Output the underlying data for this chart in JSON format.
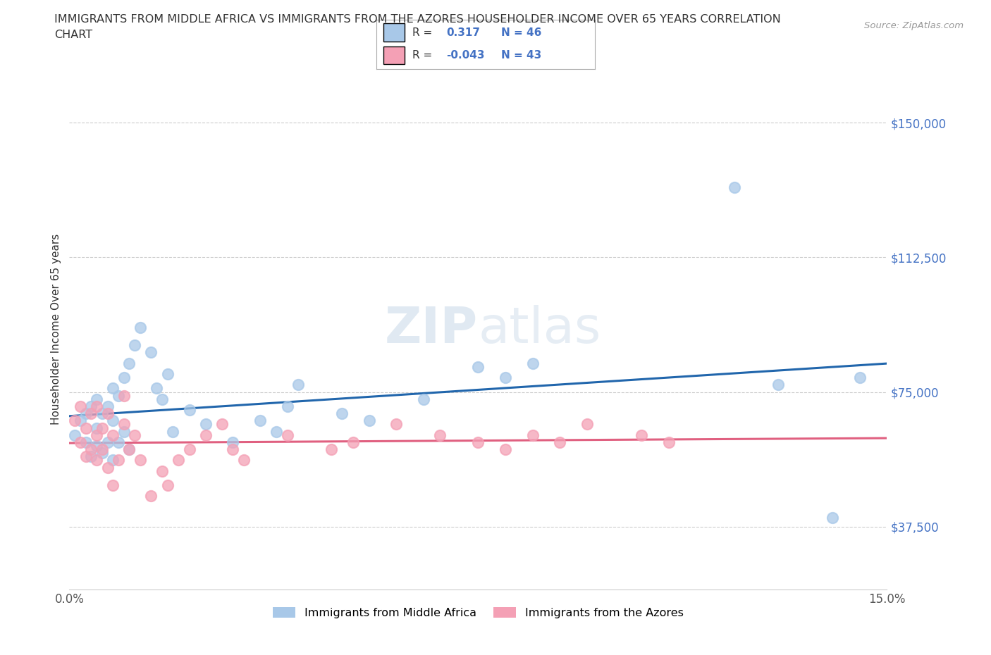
{
  "title_line1": "IMMIGRANTS FROM MIDDLE AFRICA VS IMMIGRANTS FROM THE AZORES HOUSEHOLDER INCOME OVER 65 YEARS CORRELATION",
  "title_line2": "CHART",
  "source_text": "Source: ZipAtlas.com",
  "ylabel": "Householder Income Over 65 years",
  "xlim": [
    0.0,
    0.15
  ],
  "ylim": [
    20000,
    165000
  ],
  "yticks": [
    37500,
    75000,
    112500,
    150000
  ],
  "ytick_labels": [
    "$37,500",
    "$75,000",
    "$112,500",
    "$150,000"
  ],
  "xtick_positions": [
    0.0,
    0.03,
    0.06,
    0.09,
    0.12,
    0.15
  ],
  "xtick_labels": [
    "0.0%",
    "",
    "",
    "",
    "",
    "15.0%"
  ],
  "blue_R": "0.317",
  "blue_N": "46",
  "pink_R": "-0.043",
  "pink_N": "43",
  "blue_dot_color": "#a8c8e8",
  "pink_dot_color": "#f4a0b5",
  "blue_line_color": "#2166ac",
  "pink_line_color": "#e06080",
  "grid_color": "#cccccc",
  "bg_color": "#ffffff",
  "title_color": "#333333",
  "ytick_color": "#4472c4",
  "xtick_color": "#555555",
  "legend_label_color": "#333333",
  "legend_value_color": "#4472c4",
  "watermark_color": "#c8d8e8",
  "blue_scatter_x": [
    0.001,
    0.002,
    0.003,
    0.003,
    0.004,
    0.004,
    0.005,
    0.005,
    0.005,
    0.006,
    0.006,
    0.007,
    0.007,
    0.008,
    0.008,
    0.008,
    0.009,
    0.009,
    0.01,
    0.01,
    0.011,
    0.011,
    0.012,
    0.013,
    0.015,
    0.016,
    0.017,
    0.018,
    0.019,
    0.022,
    0.025,
    0.03,
    0.035,
    0.038,
    0.04,
    0.042,
    0.05,
    0.055,
    0.065,
    0.075,
    0.08,
    0.085,
    0.122,
    0.13,
    0.14,
    0.145
  ],
  "blue_scatter_y": [
    63000,
    67000,
    61000,
    69000,
    57000,
    71000,
    60000,
    65000,
    73000,
    58000,
    69000,
    61000,
    71000,
    56000,
    67000,
    76000,
    61000,
    74000,
    64000,
    79000,
    59000,
    83000,
    88000,
    93000,
    86000,
    76000,
    73000,
    80000,
    64000,
    70000,
    66000,
    61000,
    67000,
    64000,
    71000,
    77000,
    69000,
    67000,
    73000,
    82000,
    79000,
    83000,
    132000,
    77000,
    40000,
    79000
  ],
  "pink_scatter_x": [
    0.001,
    0.002,
    0.002,
    0.003,
    0.003,
    0.004,
    0.004,
    0.005,
    0.005,
    0.005,
    0.006,
    0.006,
    0.007,
    0.007,
    0.008,
    0.008,
    0.009,
    0.01,
    0.01,
    0.011,
    0.012,
    0.013,
    0.015,
    0.017,
    0.018,
    0.02,
    0.022,
    0.025,
    0.028,
    0.03,
    0.032,
    0.04,
    0.048,
    0.052,
    0.06,
    0.068,
    0.075,
    0.08,
    0.085,
    0.09,
    0.095,
    0.105,
    0.11
  ],
  "pink_scatter_y": [
    67000,
    61000,
    71000,
    57000,
    65000,
    59000,
    69000,
    63000,
    71000,
    56000,
    65000,
    59000,
    69000,
    54000,
    63000,
    49000,
    56000,
    66000,
    74000,
    59000,
    63000,
    56000,
    46000,
    53000,
    49000,
    56000,
    59000,
    63000,
    66000,
    59000,
    56000,
    63000,
    59000,
    61000,
    66000,
    63000,
    61000,
    59000,
    63000,
    61000,
    66000,
    63000,
    61000
  ]
}
